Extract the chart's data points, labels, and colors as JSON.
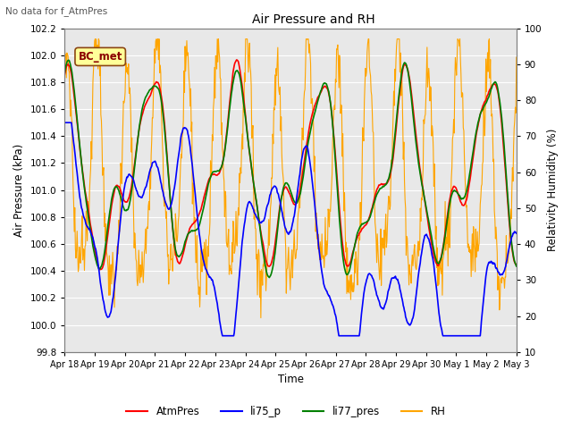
{
  "title": "Air Pressure and RH",
  "subtitle": "No data for f_AtmPres",
  "xlabel": "Time",
  "ylabel_left": "Air Pressure (kPa)",
  "ylabel_right": "Relativity Humidity (%)",
  "ylim_left": [
    99.8,
    102.2
  ],
  "ylim_right": [
    10,
    100
  ],
  "yticks_left": [
    99.8,
    100.0,
    100.2,
    100.4,
    100.6,
    100.8,
    101.0,
    101.2,
    101.4,
    101.6,
    101.8,
    102.0,
    102.2
  ],
  "yticks_right": [
    10,
    20,
    30,
    40,
    50,
    60,
    70,
    80,
    90,
    100
  ],
  "xtick_labels": [
    "Apr 18",
    "Apr 19",
    "Apr 20",
    "Apr 21",
    "Apr 22",
    "Apr 23",
    "Apr 24",
    "Apr 25",
    "Apr 26",
    "Apr 27",
    "Apr 28",
    "Apr 29",
    "Apr 30",
    "May 1",
    "May 2",
    "May 3"
  ],
  "legend_labels": [
    "AtmPres",
    "li75_p",
    "li77_pres",
    "RH"
  ],
  "legend_colors": [
    "red",
    "blue",
    "green",
    "orange"
  ],
  "annotation_text": "BC_met",
  "annotation_facecolor": "#FFFF99",
  "annotation_edgecolor": "#8B4513",
  "plot_bg_color": "#e8e8e8",
  "fig_bg_color": "#ffffff",
  "grid_color": "white",
  "n_points": 800
}
